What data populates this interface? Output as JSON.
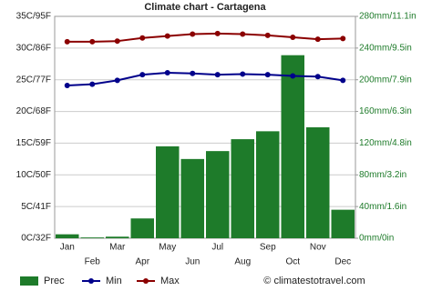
{
  "chart_data": {
    "type": "bar-line",
    "title": "Climate chart - Cartagena",
    "categories": [
      "Jan",
      "Feb",
      "Mar",
      "Apr",
      "May",
      "Jun",
      "Jul",
      "Aug",
      "Sep",
      "Oct",
      "Nov",
      "Dec"
    ],
    "series": [
      {
        "name": "Prec",
        "color": "#1e7b2a",
        "axis": "y2",
        "values": [
          5,
          1,
          2,
          25,
          116,
          100,
          110,
          125,
          135,
          231,
          140,
          36
        ]
      },
      {
        "name": "Min",
        "color": "#00008b",
        "values": [
          24.1,
          24.3,
          24.9,
          25.8,
          26.1,
          26,
          25.8,
          25.9,
          25.8,
          25.6,
          25.5,
          24.9
        ]
      },
      {
        "name": "Max",
        "color": "#8b0000",
        "values": [
          31,
          31,
          31.1,
          31.6,
          31.9,
          32.2,
          32.3,
          32.2,
          32,
          31.7,
          31.4,
          31.5
        ]
      }
    ],
    "ylim": [
      0,
      35
    ],
    "yticks": [
      {
        "value": 0,
        "label": "0C/32F"
      },
      {
        "value": 5,
        "label": "5C/41F"
      },
      {
        "value": 10,
        "label": "10C/50F"
      },
      {
        "value": 15,
        "label": "15C/59F"
      },
      {
        "value": 20,
        "label": "20C/68F"
      },
      {
        "value": 25,
        "label": "25C/77F"
      },
      {
        "value": 30,
        "label": "30C/86F"
      },
      {
        "value": 35,
        "label": "35C/95F"
      }
    ],
    "y2lim": [
      0,
      280
    ],
    "y2ticks": [
      {
        "value": 0,
        "label": "0mm/0in"
      },
      {
        "value": 40,
        "label": "40mm/1.6in"
      },
      {
        "value": 80,
        "label": "80mm/3.2in"
      },
      {
        "value": 120,
        "label": "120mm/4.8in"
      },
      {
        "value": 160,
        "label": "160mm/6.3in"
      },
      {
        "value": 200,
        "label": "200mm/7.9in"
      },
      {
        "value": 240,
        "label": "240mm/9.5in"
      },
      {
        "value": 280,
        "label": "280mm/11.1in"
      }
    ],
    "grid": true,
    "legend": "bottom",
    "source": "© climatestotravel.com"
  }
}
